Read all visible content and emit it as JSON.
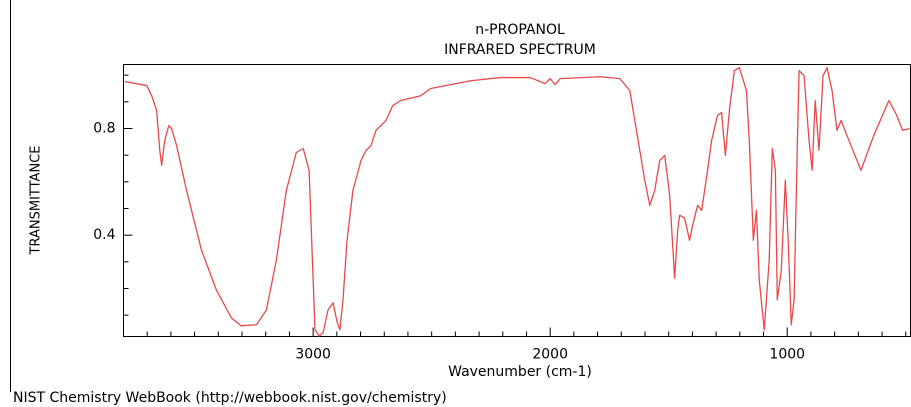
{
  "chart_data": {
    "type": "line",
    "title": "n-PROPANOL",
    "subtitle": "INFRARED SPECTRUM",
    "x_label": "Wavenumber (cm-1)",
    "y_label": "TRANSMITTANCE",
    "source": "NIST Chemistry WebBook (http://webbook.nist.gov/chemistry)",
    "xlim": [
      3800,
      480
    ],
    "ylim": [
      0.02,
      1.04
    ],
    "xticks": [
      3000,
      2000,
      1000
    ],
    "yticks": [
      0.4,
      0.8
    ],
    "xticks_minor": [
      3800,
      3700,
      3600,
      3500,
      3400,
      3300,
      3200,
      3100,
      2900,
      2800,
      2700,
      2600,
      2500,
      2400,
      2300,
      2200,
      2100,
      1900,
      1800,
      1700,
      1600,
      1500,
      1400,
      1300,
      1200,
      1100,
      900,
      800,
      700,
      600,
      500
    ],
    "yticks_minor": [
      0.1,
      0.2,
      0.3,
      0.5,
      0.6,
      0.7,
      0.9,
      1.0
    ],
    "series": [
      {
        "color": "#e8484a",
        "x": [
          3794,
          3702,
          3681,
          3660,
          3647,
          3639,
          3626,
          3609,
          3597,
          3576,
          3534,
          3471,
          3408,
          3345,
          3303,
          3239,
          3197,
          3155,
          3113,
          3071,
          3042,
          3017,
          3000,
          2992,
          2975,
          2958,
          2937,
          2916,
          2899,
          2887,
          2874,
          2857,
          2832,
          2798,
          2777,
          2756,
          2735,
          2714,
          2693,
          2664,
          2630,
          2546,
          2504,
          2336,
          2210,
          2084,
          2021,
          2000,
          1979,
          1958,
          1790,
          1706,
          1664,
          1622,
          1601,
          1580,
          1559,
          1538,
          1517,
          1496,
          1475,
          1462,
          1454,
          1433,
          1412,
          1399,
          1378,
          1361,
          1336,
          1319,
          1294,
          1277,
          1261,
          1244,
          1223,
          1202,
          1172,
          1160,
          1143,
          1130,
          1118,
          1097,
          1076,
          1063,
          1050,
          1042,
          1025,
          1008,
          996,
          983,
          971,
          958,
          950,
          929,
          908,
          895,
          882,
          866,
          849,
          832,
          811,
          790,
          773,
          748,
          689,
          635,
          571,
          538,
          513,
          483
        ],
        "values": [
          0.976,
          0.961,
          0.923,
          0.867,
          0.718,
          0.662,
          0.755,
          0.811,
          0.8,
          0.736,
          0.568,
          0.344,
          0.194,
          0.09,
          0.06,
          0.064,
          0.12,
          0.307,
          0.568,
          0.71,
          0.725,
          0.643,
          0.232,
          0.045,
          0.022,
          0.034,
          0.12,
          0.146,
          0.075,
          0.045,
          0.157,
          0.381,
          0.568,
          0.68,
          0.718,
          0.736,
          0.793,
          0.811,
          0.83,
          0.886,
          0.905,
          0.923,
          0.95,
          0.979,
          0.991,
          0.991,
          0.968,
          0.987,
          0.964,
          0.987,
          0.994,
          0.987,
          0.942,
          0.718,
          0.606,
          0.512,
          0.568,
          0.68,
          0.699,
          0.55,
          0.239,
          0.419,
          0.475,
          0.464,
          0.381,
          0.437,
          0.512,
          0.493,
          0.643,
          0.755,
          0.849,
          0.86,
          0.699,
          0.867,
          1.017,
          1.028,
          0.942,
          0.755,
          0.381,
          0.493,
          0.232,
          0.045,
          0.307,
          0.725,
          0.643,
          0.157,
          0.269,
          0.606,
          0.381,
          0.064,
          0.157,
          0.718,
          1.017,
          0.998,
          0.755,
          0.643,
          0.905,
          0.718,
          0.998,
          1.028,
          0.942,
          0.793,
          0.83,
          0.774,
          0.643,
          0.774,
          0.905,
          0.849,
          0.793,
          0.8
        ]
      }
    ]
  }
}
